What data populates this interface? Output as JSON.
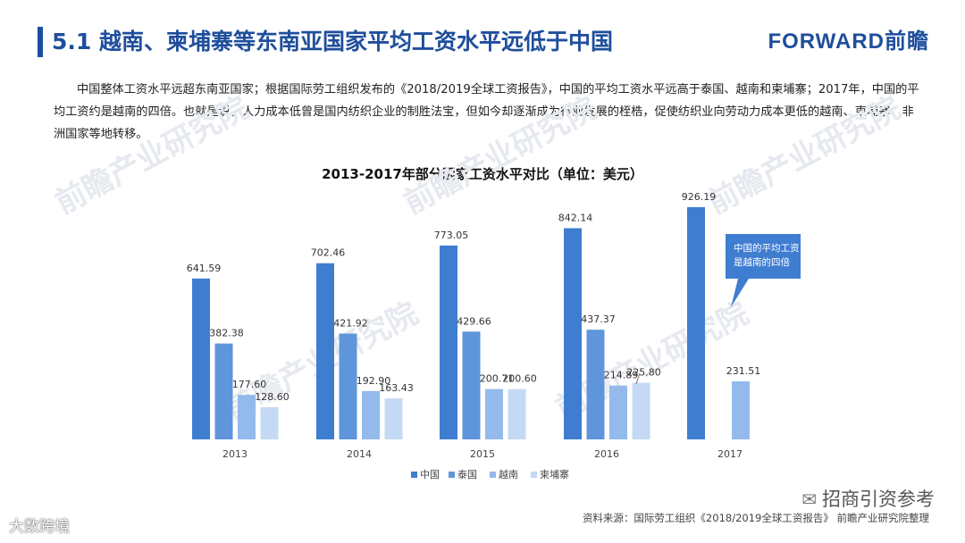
{
  "header": {
    "title": "5.1 越南、柬埔寨等东南亚国家平均工资水平远低于中国",
    "brand": "FORWARD前瞻"
  },
  "paragraph": "中国整体工资水平远超东南亚国家；根据国际劳工组织发布的《2018/2019全球工资报告》，中国的平均工资水平远高于泰国、越南和柬埔寨；2017年，中国的平均工资约是越南的四倍。也就是说，人力成本低曾是国内纺织企业的制胜法宝，但如今却逐渐成为行业发展的桎梏，促使纺织业向劳动力成本更低的越南、柬埔寨、非洲国家等地转移。",
  "chart_data": {
    "type": "bar",
    "title": "2013-2017年部分国家工资水平对比（单位：美元）",
    "categories": [
      "2013",
      "2014",
      "2015",
      "2016",
      "2017"
    ],
    "series": [
      {
        "name": "中国",
        "values": [
          641.59,
          702.46,
          773.05,
          842.14,
          926.19
        ],
        "color": "#3f7dd1"
      },
      {
        "name": "泰国",
        "values": [
          382.38,
          421.92,
          429.66,
          437.37,
          null
        ],
        "color": "#5f95da"
      },
      {
        "name": "越南",
        "values": [
          177.6,
          192.9,
          200.71,
          214.89,
          231.51
        ],
        "color": "#93baea"
      },
      {
        "name": "柬埔寨",
        "values": [
          128.6,
          163.43,
          200.6,
          225.8,
          null
        ],
        "color": "#c4d9f4"
      }
    ],
    "value_labels": [
      [
        "641.59",
        "382.38",
        "177.60",
        "128.60"
      ],
      [
        "702.46",
        "421.92",
        "192.90",
        "163.43"
      ],
      [
        "773.05",
        "429.66",
        "200.71",
        "200.60"
      ],
      [
        "842.14",
        "437.37",
        "214.89",
        "225.80"
      ],
      [
        "926.19",
        null,
        "231.51",
        null
      ]
    ],
    "ylim": [
      0,
      1000
    ],
    "xlabel": "",
    "ylabel": "",
    "legend": "bottom-center",
    "annotation": {
      "text": "中国的平均工资是越南的四倍",
      "line1": "中国的平均工资",
      "line2": "是越南的四倍",
      "color": "#3f7dd1"
    }
  },
  "watermark": "前瞻产业研究院",
  "source": "资料来源：国际劳工组织《2018/2019全球工资报告》 前瞻产业研究院整理",
  "wechat": "招商引资参考",
  "corner_logo": "大数跨境"
}
